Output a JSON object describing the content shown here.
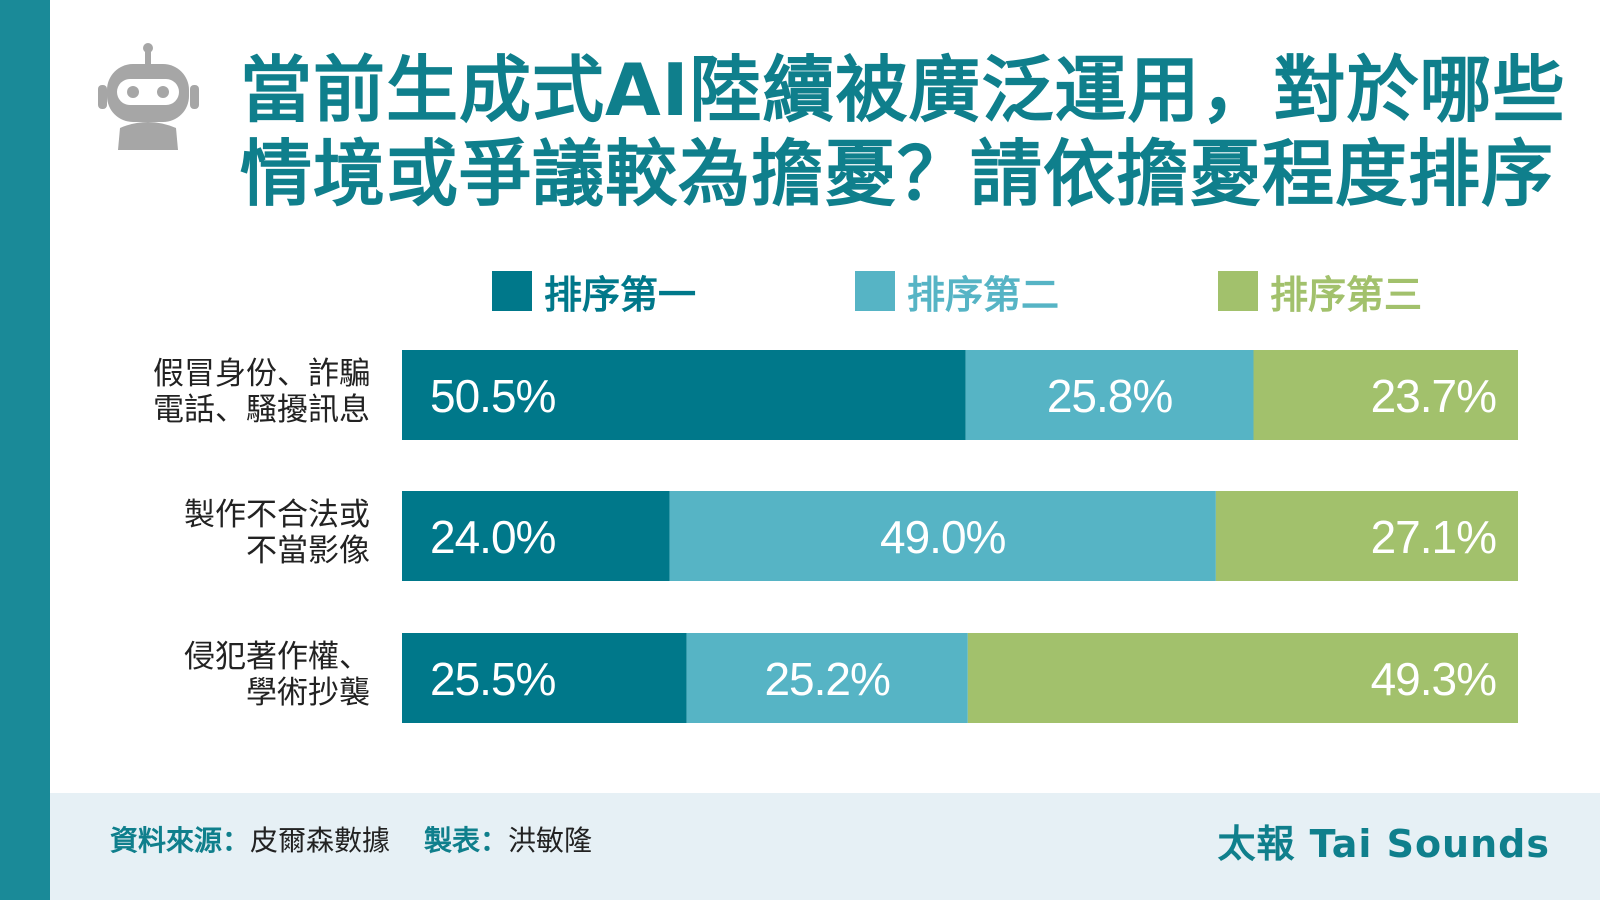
{
  "title_lines": [
    "當前生成式AI陸續被廣泛運用，對於哪些",
    "情境或爭議較為擔憂？請依擔憂程度排序"
  ],
  "colors": {
    "accent": "#0f7f8c",
    "sidebar": "#1a8a98",
    "rank1": "#00788a",
    "rank2": "#56b4c5",
    "rank3": "#a2c16c",
    "footer_bg": "#e6f0f5"
  },
  "icons": {
    "header_icon": "robot-icon"
  },
  "chart_data": {
    "type": "bar",
    "orientation": "horizontal",
    "stacked": true,
    "normalized": true,
    "categories": [
      [
        "假冒身份、詐騙",
        "電話、騷擾訊息"
      ],
      [
        "製作不合法或",
        "不當影像"
      ],
      [
        "侵犯著作權、",
        "學術抄襲"
      ]
    ],
    "series": [
      {
        "name": "排序第一",
        "color": "#00788a",
        "values": [
          50.5,
          24.0,
          25.5
        ],
        "labels": [
          "50.5%",
          "24.0%",
          "25.5%"
        ]
      },
      {
        "name": "排序第二",
        "color": "#56b4c5",
        "values": [
          25.8,
          49.0,
          25.2
        ],
        "labels": [
          "25.8%",
          "49.0%",
          "25.2%"
        ]
      },
      {
        "name": "排序第三",
        "color": "#a2c16c",
        "values": [
          23.7,
          27.1,
          49.3
        ],
        "labels": [
          "23.7%",
          "27.1%",
          "49.3%"
        ]
      }
    ],
    "legend_position": "top",
    "grid": false
  },
  "footer": {
    "source_label": "資料來源：",
    "source_value": "皮爾森數據",
    "maker_label": "製表：",
    "maker_value": "洪敏隆",
    "brand": "太報 Tai Sounds"
  }
}
